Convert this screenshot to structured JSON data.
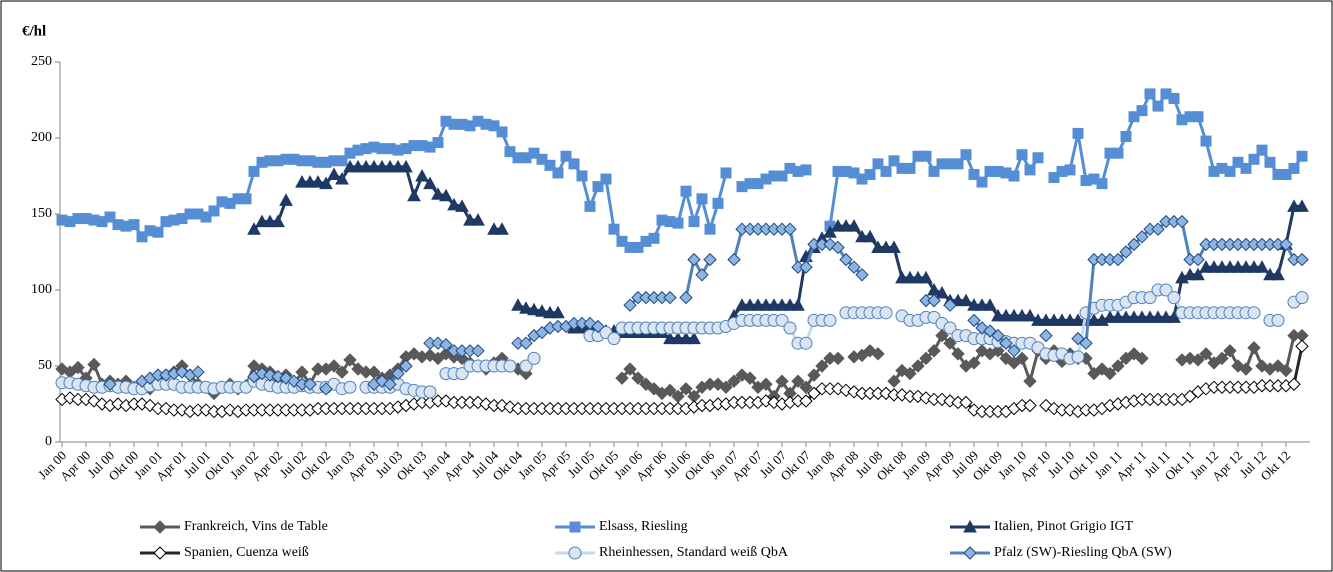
{
  "chart_data": {
    "type": "line",
    "y_label": "€/hl",
    "ylim": [
      0,
      250
    ],
    "yticks": [
      0,
      50,
      100,
      150,
      200,
      250
    ],
    "grid": false,
    "categories": [
      "Jan 00",
      null,
      null,
      "Apr 00",
      null,
      null,
      "Jul 00",
      null,
      null,
      "Okt 00",
      null,
      null,
      "Jan 01",
      null,
      null,
      "Apr 01",
      null,
      null,
      "Jul 01",
      null,
      null,
      "Okt 01",
      null,
      null,
      "Jan 02",
      null,
      null,
      "Apr 02",
      null,
      null,
      "Jul 02",
      null,
      null,
      "Okt 02",
      null,
      null,
      "Jan 03",
      null,
      null,
      "Apr 03",
      null,
      null,
      "Jul 03",
      null,
      null,
      "Okt 03",
      null,
      null,
      "Jan 04",
      null,
      null,
      "Apr 04",
      null,
      null,
      "Jul 04",
      null,
      null,
      "Okt 04",
      null,
      null,
      "Jan 05",
      null,
      null,
      "Apr 05",
      null,
      null,
      "Jul 05",
      null,
      null,
      "Okt 05",
      null,
      null,
      "Jan 06",
      null,
      null,
      "Apr 06",
      null,
      null,
      "Jul 06",
      null,
      null,
      "Okt 06",
      null,
      null,
      "Jan 07",
      null,
      null,
      "Apr 07",
      null,
      null,
      "Jul 07",
      null,
      null,
      "Okt 07",
      null,
      null,
      "Jan 08",
      null,
      null,
      "Apr 08",
      null,
      null,
      "Jul 08",
      null,
      null,
      "Okt 08",
      null,
      null,
      "Jan 09",
      null,
      null,
      "Apr 09",
      null,
      null,
      "Jul 09",
      null,
      null,
      "Okt 09",
      null,
      null,
      "Jan 10",
      null,
      null,
      "Apr 10",
      null,
      null,
      "Jul 10",
      null,
      null,
      "Okt 10",
      null,
      null,
      "Jan 11",
      null,
      null,
      "Apr 11",
      null,
      null,
      "Jul 11",
      null,
      null,
      "Okt 11",
      null,
      null,
      "Jan 12",
      null,
      null,
      "Apr 12",
      null,
      null,
      "Jul 12",
      null,
      null,
      "Okt 12",
      null,
      null
    ],
    "series": [
      {
        "name": "Frankreich, Vins de Table",
        "color": "#595959",
        "marker": "diamond",
        "marker_fill": "#595959",
        "values": [
          48,
          46,
          49,
          42,
          51,
          38,
          40,
          38,
          40,
          36,
          38,
          35,
          42,
          44,
          46,
          50,
          44,
          38,
          36,
          32,
          36,
          38,
          35,
          37,
          50,
          48,
          46,
          40,
          44,
          38,
          46,
          38,
          48,
          48,
          50,
          46,
          54,
          48,
          46,
          46,
          42,
          44,
          48,
          56,
          58,
          56,
          57,
          55,
          58,
          56,
          55,
          52,
          50,
          48,
          52,
          55,
          50,
          48,
          45,
          null,
          null,
          null,
          null,
          null,
          null,
          null,
          null,
          null,
          null,
          null,
          42,
          48,
          42,
          38,
          35,
          32,
          34,
          30,
          35,
          30,
          36,
          38,
          38,
          36,
          40,
          44,
          42,
          36,
          38,
          30,
          40,
          32,
          40,
          36,
          44,
          50,
          55,
          55,
          null,
          56,
          57,
          60,
          58,
          null,
          40,
          47,
          45,
          50,
          55,
          60,
          70,
          65,
          58,
          50,
          52,
          60,
          58,
          60,
          55,
          52,
          55,
          40,
          60,
          55,
          60,
          53,
          58,
          55,
          55,
          45,
          48,
          45,
          50,
          55,
          58,
          55,
          null,
          null,
          null,
          null,
          54,
          55,
          54,
          58,
          52,
          55,
          60,
          50,
          48,
          62,
          50,
          48,
          50,
          47,
          70,
          70
        ]
      },
      {
        "name": "Elsass, Riesling",
        "color": "#558ed5",
        "marker": "square",
        "marker_fill": "#558ed5",
        "values": [
          146,
          145,
          147,
          147,
          146,
          145,
          148,
          143,
          142,
          143,
          135,
          139,
          138,
          145,
          146,
          147,
          150,
          150,
          148,
          152,
          158,
          157,
          160,
          160,
          178,
          184,
          185,
          185,
          186,
          186,
          185,
          185,
          184,
          184,
          185,
          185,
          190,
          192,
          193,
          194,
          193,
          193,
          192,
          193,
          195,
          195,
          194,
          197,
          211,
          209,
          209,
          208,
          211,
          209,
          208,
          204,
          191,
          187,
          187,
          190,
          186,
          182,
          177,
          188,
          183,
          175,
          155,
          168,
          173,
          140,
          132,
          128,
          128,
          132,
          134,
          146,
          145,
          144,
          165,
          145,
          160,
          140,
          157,
          177,
          null,
          168,
          170,
          170,
          173,
          175,
          175,
          180,
          178,
          179,
          null,
          null,
          142,
          178,
          178,
          177,
          173,
          176,
          183,
          178,
          185,
          180,
          180,
          188,
          188,
          178,
          183,
          183,
          183,
          189,
          176,
          171,
          178,
          178,
          177,
          175,
          189,
          179,
          187,
          null,
          174,
          178,
          179,
          203,
          172,
          173,
          170,
          190,
          190,
          201,
          214,
          218,
          229,
          221,
          229,
          226,
          212,
          214,
          214,
          198,
          178,
          180,
          178,
          184,
          180,
          186,
          192,
          184,
          176,
          176,
          180,
          188
        ]
      },
      {
        "name": "Italien, Pinot Grigio IGT",
        "color": "#1f3864",
        "marker": "triangle",
        "marker_fill": "#1f3864",
        "values": [
          null,
          null,
          null,
          null,
          null,
          null,
          null,
          null,
          null,
          null,
          null,
          null,
          null,
          null,
          null,
          null,
          null,
          null,
          null,
          null,
          null,
          null,
          null,
          null,
          140,
          145,
          145,
          145,
          159,
          null,
          171,
          171,
          171,
          170,
          176,
          173,
          181,
          181,
          181,
          181,
          181,
          181,
          181,
          181,
          162,
          175,
          170,
          163,
          162,
          156,
          155,
          146,
          146,
          null,
          140,
          140,
          null,
          90,
          88,
          87,
          86,
          85,
          85,
          null,
          75,
          75,
          75,
          73,
          73,
          73,
          72,
          72,
          72,
          72,
          72,
          72,
          68,
          68,
          68,
          68,
          null,
          null,
          null,
          null,
          83,
          90,
          90,
          90,
          90,
          90,
          90,
          90,
          90,
          122,
          128,
          134,
          138,
          142,
          142,
          142,
          135,
          135,
          128,
          128,
          128,
          108,
          108,
          108,
          108,
          100,
          98,
          93,
          93,
          93,
          90,
          90,
          90,
          83,
          83,
          83,
          83,
          83,
          80,
          80,
          80,
          80,
          80,
          80,
          80,
          80,
          80,
          82,
          82,
          82,
          82,
          82,
          82,
          82,
          82,
          82,
          108,
          110,
          110,
          115,
          115,
          115,
          115,
          115,
          115,
          115,
          115,
          110,
          110,
          130,
          155,
          155
        ]
      },
      {
        "name": "Spanien, Cuenza weiß",
        "color": "#262626",
        "marker": "diamond",
        "marker_fill": "#ffffff",
        "values": [
          28,
          29,
          28,
          28,
          27,
          25,
          24,
          25,
          24,
          25,
          25,
          24,
          22,
          22,
          21,
          21,
          20,
          21,
          21,
          20,
          20,
          21,
          20,
          21,
          21,
          21,
          21,
          21,
          21,
          21,
          21,
          21,
          22,
          22,
          22,
          22,
          22,
          22,
          22,
          22,
          22,
          22,
          23,
          24,
          25,
          26,
          26,
          27,
          27,
          26,
          26,
          26,
          26,
          25,
          24,
          24,
          23,
          22,
          22,
          22,
          22,
          22,
          22,
          22,
          22,
          22,
          22,
          22,
          22,
          22,
          22,
          22,
          22,
          22,
          22,
          22,
          22,
          22,
          22,
          23,
          24,
          24,
          25,
          25,
          26,
          26,
          26,
          26,
          27,
          26,
          25,
          26,
          27,
          27,
          32,
          35,
          35,
          35,
          34,
          33,
          32,
          32,
          32,
          32,
          31,
          31,
          30,
          30,
          29,
          28,
          28,
          27,
          26,
          26,
          21,
          20,
          20,
          20,
          20,
          22,
          24,
          24,
          null,
          24,
          22,
          21,
          21,
          20,
          21,
          21,
          22,
          24,
          25,
          26,
          27,
          28,
          28,
          28,
          28,
          28,
          28,
          30,
          33,
          35,
          36,
          36,
          36,
          36,
          36,
          36,
          37,
          37,
          37,
          37,
          38,
          63
        ]
      },
      {
        "name": "Rheinhessen, Standard weiß QbA",
        "color": "#c6d9f1",
        "marker": "circle",
        "marker_fill": "#dbe5f1",
        "values": [
          39,
          39,
          38,
          37,
          36,
          36,
          37,
          36,
          36,
          35,
          35,
          37,
          38,
          38,
          38,
          36,
          36,
          36,
          36,
          35,
          36,
          36,
          36,
          36,
          40,
          38,
          37,
          36,
          36,
          36,
          37,
          36,
          36,
          36,
          38,
          35,
          36,
          null,
          36,
          36,
          36,
          36,
          38,
          35,
          34,
          33,
          33,
          null,
          45,
          45,
          45,
          50,
          50,
          50,
          50,
          50,
          50,
          null,
          50,
          55,
          null,
          null,
          null,
          null,
          null,
          null,
          70,
          70,
          72,
          68,
          75,
          75,
          75,
          75,
          75,
          75,
          75,
          75,
          75,
          75,
          75,
          75,
          75,
          76,
          78,
          80,
          80,
          80,
          80,
          80,
          80,
          75,
          65,
          65,
          80,
          80,
          80,
          null,
          85,
          85,
          85,
          85,
          85,
          85,
          null,
          83,
          80,
          80,
          82,
          82,
          78,
          75,
          70,
          70,
          68,
          68,
          68,
          66,
          66,
          65,
          65,
          65,
          62,
          58,
          57,
          58,
          55,
          56,
          85,
          88,
          90,
          90,
          90,
          92,
          95,
          95,
          95,
          100,
          100,
          95,
          85,
          85,
          85,
          85,
          85,
          85,
          85,
          85,
          85,
          85,
          null,
          80,
          80,
          null,
          92,
          95
        ]
      },
      {
        "name": "Pfalz (SW)-Riesling QbA (SW)",
        "color": "#4f81bd",
        "marker": "diamond",
        "marker_fill": "#8db4e2",
        "values": [
          null,
          null,
          null,
          null,
          null,
          null,
          38,
          null,
          null,
          null,
          40,
          42,
          44,
          44,
          45,
          46,
          44,
          46,
          null,
          null,
          null,
          null,
          null,
          null,
          43,
          45,
          44,
          43,
          42,
          40,
          38,
          38,
          null,
          35,
          null,
          null,
          null,
          null,
          null,
          38,
          40,
          38,
          45,
          50,
          null,
          null,
          65,
          65,
          64,
          60,
          60,
          60,
          60,
          null,
          null,
          null,
          null,
          65,
          65,
          70,
          72,
          75,
          76,
          76,
          78,
          78,
          78,
          76,
          null,
          null,
          null,
          90,
          95,
          95,
          95,
          95,
          95,
          null,
          95,
          120,
          110,
          120,
          null,
          null,
          120,
          140,
          140,
          140,
          140,
          140,
          140,
          140,
          115,
          115,
          130,
          130,
          130,
          128,
          120,
          115,
          110,
          null,
          null,
          null,
          null,
          null,
          null,
          null,
          93,
          93,
          null,
          90,
          null,
          null,
          80,
          75,
          73,
          70,
          65,
          60,
          null,
          null,
          null,
          70,
          null,
          null,
          null,
          68,
          65,
          120,
          120,
          120,
          120,
          125,
          130,
          135,
          140,
          140,
          145,
          145,
          145,
          120,
          120,
          130,
          130,
          130,
          130,
          130,
          130,
          130,
          130,
          130,
          130,
          130,
          120,
          120
        ]
      }
    ]
  }
}
